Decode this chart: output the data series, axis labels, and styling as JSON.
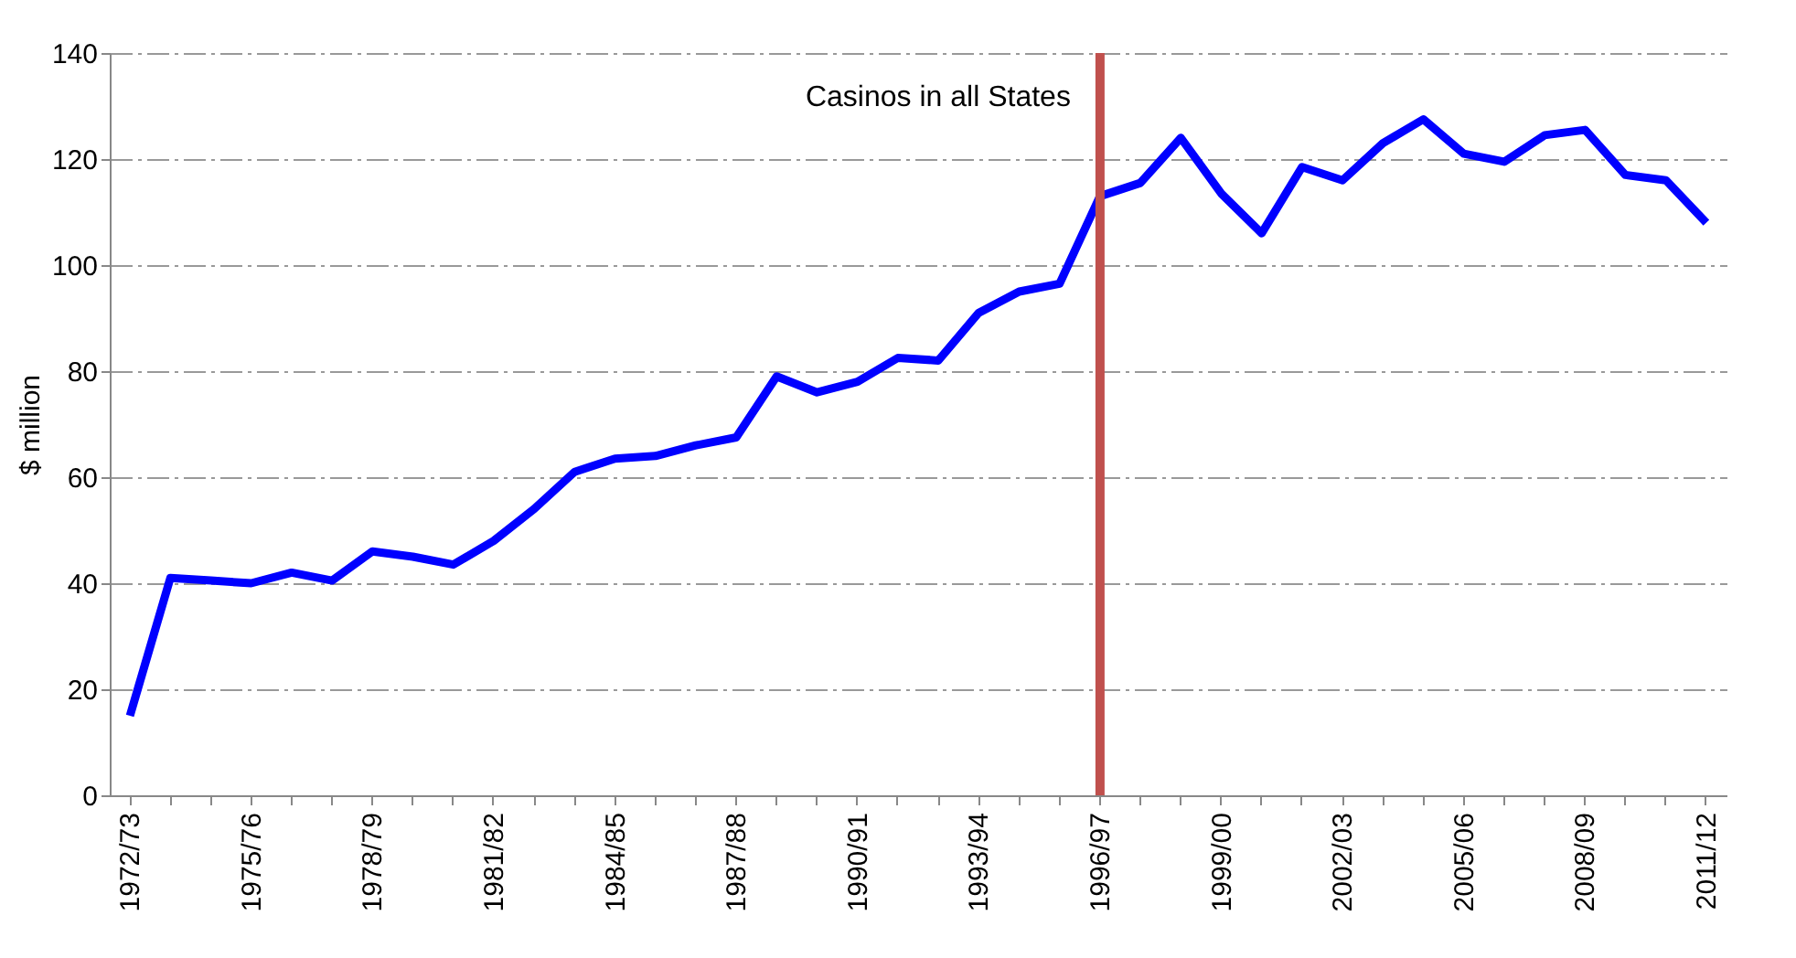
{
  "chart_data": {
    "type": "line",
    "ylabel": "$ million",
    "categories": [
      "1972/73",
      null,
      null,
      "1975/76",
      null,
      null,
      "1978/79",
      null,
      null,
      "1981/82",
      null,
      null,
      "1984/85",
      null,
      null,
      "1987/88",
      null,
      null,
      "1990/91",
      null,
      null,
      "1993/94",
      null,
      null,
      "1996/97",
      null,
      null,
      "1999/00",
      null,
      null,
      "2002/03",
      null,
      null,
      "2005/06",
      null,
      null,
      "2008/09",
      null,
      null,
      "2011/12"
    ],
    "series": [
      {
        "color": "#0000ff",
        "values": [
          15,
          41,
          40.5,
          40,
          42,
          40.5,
          46,
          45,
          43.5,
          48,
          54,
          61,
          63.5,
          64,
          66,
          67.5,
          79,
          76,
          78,
          82.5,
          82,
          91,
          95,
          96.5,
          113,
          115.5,
          124,
          113.5,
          106,
          118.5,
          116,
          123,
          127.5,
          121,
          119.5,
          124.5,
          125.5,
          117,
          116,
          108
        ]
      }
    ],
    "ylim": [
      0,
      140
    ],
    "yticks": [
      0,
      20,
      40,
      60,
      80,
      100,
      120,
      140
    ],
    "grid": "y",
    "marker": "none",
    "line_style": "solid",
    "ref_lines": [
      {
        "axis": "x",
        "value": "1996/97",
        "label": "Casinos in all States",
        "color": "#c0504d"
      }
    ]
  }
}
